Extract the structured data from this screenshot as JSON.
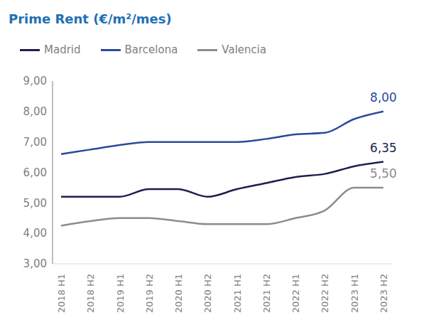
{
  "chart_data": {
    "type": "line",
    "title": "Prime Rent (€/m²/mes)",
    "categories": [
      "2018 H1",
      "2018 H2",
      "2019 H1",
      "2019 H2",
      "2020 H1",
      "2020 H2",
      "2021 H1",
      "2021 H2",
      "2022 H1",
      "2022 H2",
      "2023 H1",
      "2023 H2"
    ],
    "series": [
      {
        "name": "Madrid",
        "color": "#1c1f4f",
        "values": [
          5.2,
          5.2,
          5.2,
          5.45,
          5.45,
          5.2,
          5.45,
          5.65,
          5.85,
          5.95,
          6.2,
          6.35
        ],
        "value_labels": [
          null,
          null,
          null,
          null,
          null,
          null,
          null,
          null,
          null,
          null,
          null,
          "6,35"
        ]
      },
      {
        "name": "Barcelona",
        "color": "#2b4a9c",
        "values": [
          6.6,
          6.75,
          6.9,
          7.0,
          7.0,
          7.0,
          7.0,
          7.1,
          7.25,
          7.3,
          7.75,
          8.0
        ],
        "value_labels": [
          null,
          null,
          null,
          null,
          null,
          null,
          null,
          null,
          null,
          null,
          null,
          "8,00"
        ]
      },
      {
        "name": "Valencia",
        "color": "#8c8c8c",
        "values": [
          4.25,
          4.4,
          4.5,
          4.5,
          4.4,
          4.3,
          4.3,
          4.3,
          4.5,
          4.75,
          5.5,
          5.5
        ],
        "value_labels": [
          null,
          null,
          null,
          null,
          null,
          null,
          null,
          null,
          null,
          null,
          null,
          "5,50"
        ]
      }
    ],
    "ylim": [
      3,
      9
    ],
    "yticks": [
      {
        "value": 3,
        "label": "3,00"
      },
      {
        "value": 4,
        "label": "4,00"
      },
      {
        "value": 5,
        "label": "5,00"
      },
      {
        "value": 6,
        "label": "6,00"
      },
      {
        "value": 7,
        "label": "7,00"
      },
      {
        "value": 8,
        "label": "8,00"
      },
      {
        "value": 9,
        "label": "9,00"
      }
    ],
    "grid": false,
    "legend": "top"
  }
}
